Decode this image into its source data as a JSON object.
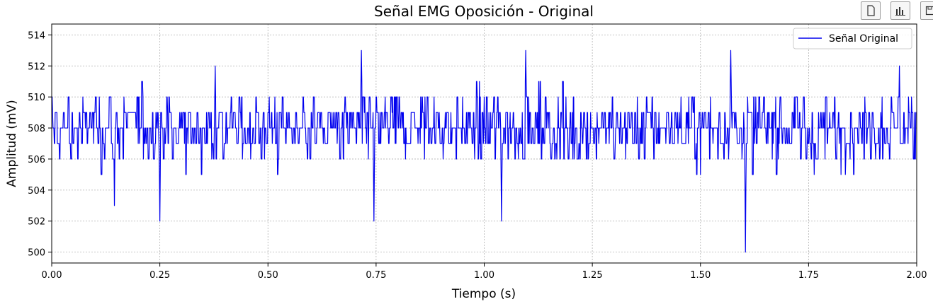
{
  "toolbar": {
    "icons": [
      "copy-icon",
      "bar-chart-icon",
      "save-icon"
    ]
  },
  "chart_data": {
    "type": "line",
    "title": "Señal EMG Oposición - Original",
    "xlabel": "Tiempo (s)",
    "ylabel": "Amplitud (mV)",
    "xlim": [
      0.0,
      2.0
    ],
    "ylim": [
      499.3,
      514.7
    ],
    "xticks": [
      0.0,
      0.25,
      0.5,
      0.75,
      1.0,
      1.25,
      1.5,
      1.75,
      2.0
    ],
    "xtick_labels": [
      "0.00",
      "0.25",
      "0.50",
      "0.75",
      "1.00",
      "1.25",
      "1.50",
      "1.75",
      "2.00"
    ],
    "yticks": [
      500,
      502,
      504,
      506,
      508,
      510,
      512,
      514
    ],
    "ytick_labels": [
      "500",
      "502",
      "504",
      "506",
      "508",
      "510",
      "512",
      "514"
    ],
    "grid": true,
    "legend_position": "top-right",
    "colors": {
      "line": "#0000ee",
      "grid": "#b0b0b0"
    },
    "sample_rate_hz": 1000,
    "notable_points": [
      {
        "x": 0.145,
        "y": 503
      },
      {
        "x": 0.25,
        "y": 502
      },
      {
        "x": 0.378,
        "y": 512
      },
      {
        "x": 0.716,
        "y": 513
      },
      {
        "x": 0.745,
        "y": 502
      },
      {
        "x": 1.04,
        "y": 502
      },
      {
        "x": 1.096,
        "y": 513
      },
      {
        "x": 1.57,
        "y": 513
      },
      {
        "x": 1.604,
        "y": 500
      },
      {
        "x": 1.96,
        "y": 512
      }
    ],
    "series": [
      {
        "name": "Señal Original",
        "baseline": 508,
        "min": 500,
        "max": 513,
        "samples": 2000
      }
    ]
  }
}
